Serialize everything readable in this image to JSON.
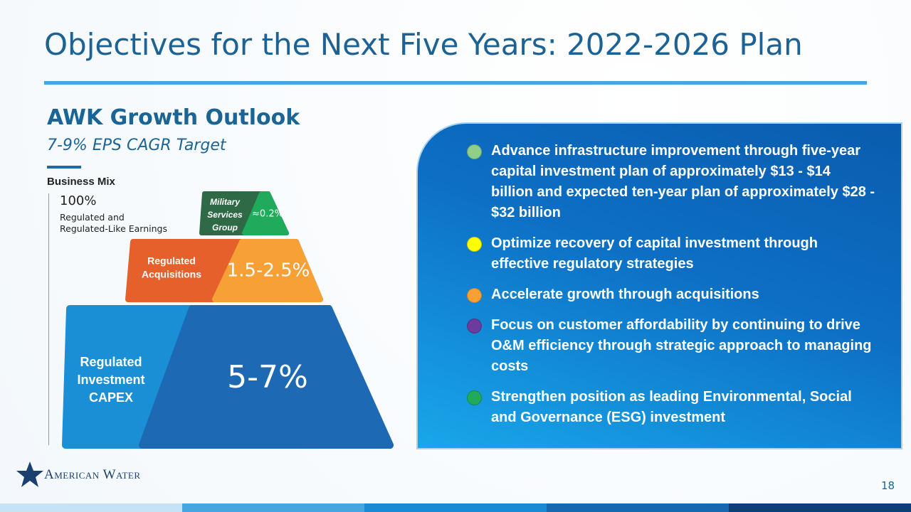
{
  "header": {
    "title": "Objectives for the Next Five Years: 2022-2026 Plan"
  },
  "outlook": {
    "heading": "AWK Growth Outlook",
    "subheading": "7-9% EPS CAGR Target",
    "business_mix": {
      "label": "Business Mix",
      "share": "100%",
      "description": [
        "Regulated and",
        "Regulated-Like Earnings"
      ]
    },
    "tiers": [
      {
        "label": [
          "Military",
          "Services",
          "Group"
        ],
        "value": "≈0.2%"
      },
      {
        "label": [
          "Regulated",
          "Acquisitions"
        ],
        "value": "1.5-2.5%"
      },
      {
        "label": [
          "Regulated",
          "Investment",
          "CAPEX"
        ],
        "value": "5-7%"
      }
    ]
  },
  "objectives": [
    {
      "text": "Advance infrastructure improvement through five-year capital investment plan of approximately $13 - $14 billion and expected ten-year plan of approximately $28 - $32 billion",
      "color": "#8fcf8a"
    },
    {
      "text": "Optimize recovery of capital investment through effective regulatory strategies",
      "color": "#ffff00"
    },
    {
      "text": "Accelerate growth through acquisitions",
      "color": "#f7a035"
    },
    {
      "text": "Focus on customer affordability by continuing to drive O&M efficiency through strategic approach to managing costs",
      "color": "#6c3b9e"
    },
    {
      "text": "Strengthen position as leading Environmental, Social and Governance (ESG) investment",
      "color": "#1fab5b"
    }
  ],
  "footer": {
    "logo": "American Water",
    "page": "18"
  }
}
